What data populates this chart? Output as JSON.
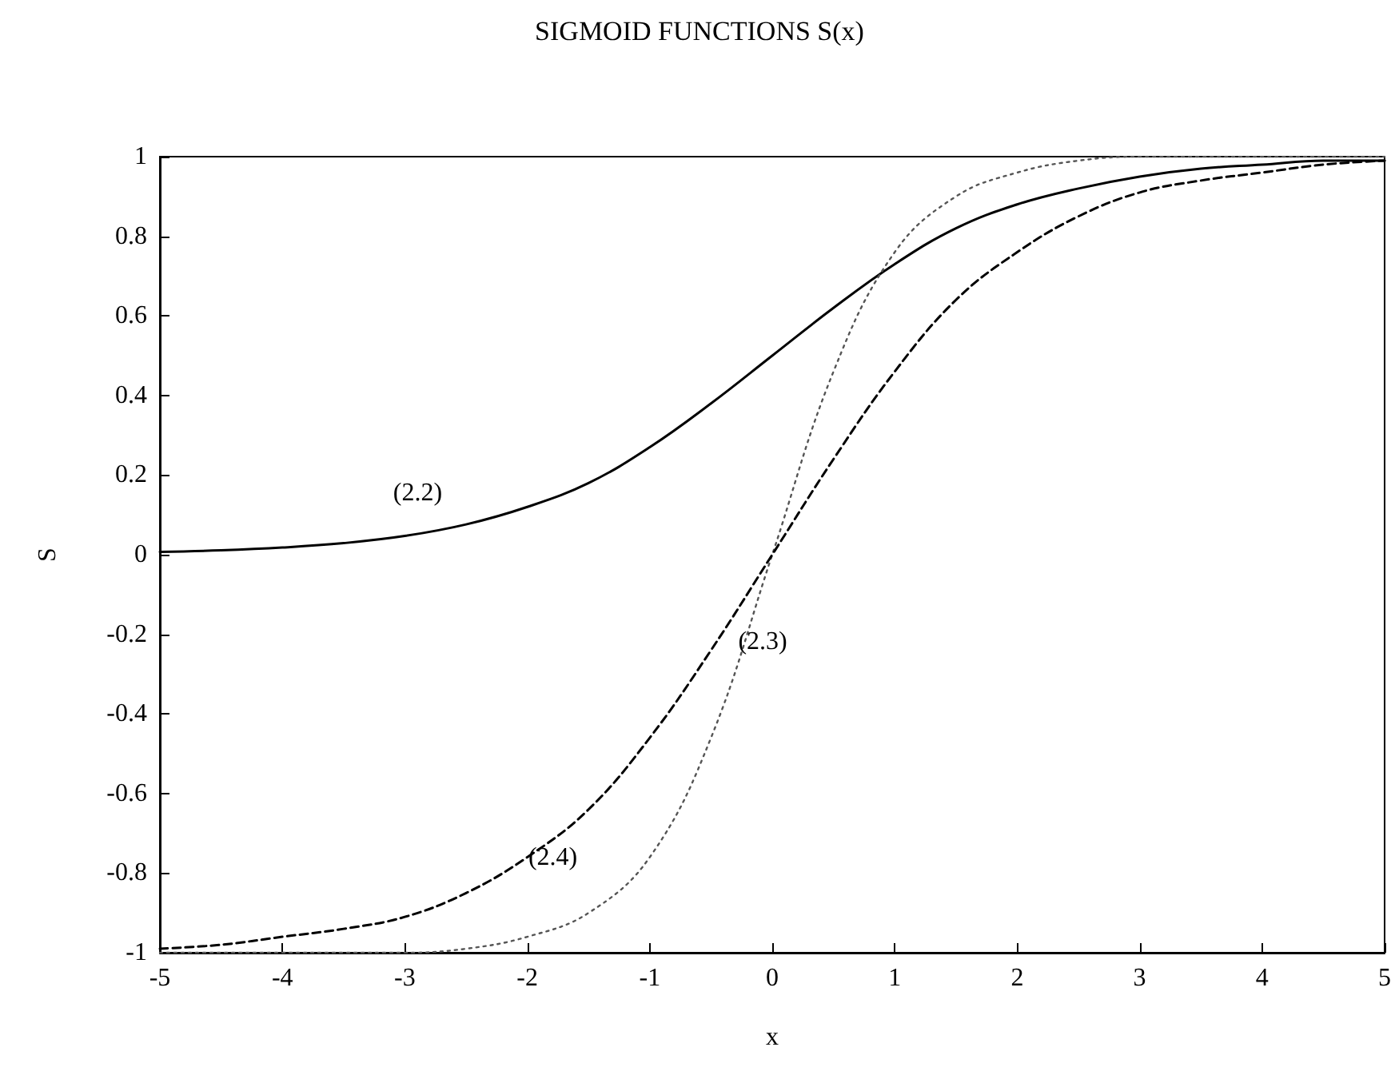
{
  "chart_data": {
    "type": "line",
    "title": "SIGMOID FUNCTIONS S(x)",
    "xlabel": "x",
    "ylabel": "S",
    "x": [
      -5,
      -4.5,
      -4,
      -3.5,
      -3,
      -2.5,
      -2,
      -1.5,
      -1,
      -0.5,
      0,
      0.5,
      1,
      1.5,
      2,
      2.5,
      3,
      3.5,
      4,
      4.5,
      5
    ],
    "series": [
      {
        "name": "(2.2)",
        "color": "#000000",
        "line_style": "solid",
        "values": [
          0.007,
          0.011,
          0.018,
          0.029,
          0.047,
          0.076,
          0.12,
          0.18,
          0.27,
          0.38,
          0.5,
          0.62,
          0.73,
          0.82,
          0.88,
          0.92,
          0.95,
          0.97,
          0.98,
          0.99,
          0.99
        ]
      },
      {
        "name": "(2.3)",
        "color": "#555555",
        "line_style": "dotted",
        "values": [
          -1,
          -1,
          -1,
          -1,
          -1,
          -0.99,
          -0.96,
          -0.9,
          -0.76,
          -0.46,
          0,
          0.46,
          0.76,
          0.9,
          0.96,
          0.99,
          1,
          1,
          1,
          1,
          1
        ]
      },
      {
        "name": "(2.4)",
        "color": "#000000",
        "line_style": "dashed",
        "values": [
          -0.99,
          -0.98,
          -0.96,
          -0.94,
          -0.91,
          -0.85,
          -0.76,
          -0.64,
          -0.46,
          -0.24,
          0,
          0.24,
          0.46,
          0.64,
          0.76,
          0.85,
          0.91,
          0.94,
          0.96,
          0.98,
          0.99
        ]
      }
    ],
    "xlim": [
      -5,
      5
    ],
    "xticks": [
      -5,
      -4,
      -3,
      -2,
      -1,
      0,
      1,
      2,
      3,
      4,
      5
    ],
    "ylim": [
      -1,
      1
    ],
    "yticks": [
      -1,
      -0.8,
      -0.6,
      -0.4,
      -0.2,
      0,
      0.2,
      0.4,
      0.6,
      0.8,
      1
    ],
    "grid": false,
    "legend": false,
    "marker": "none"
  }
}
